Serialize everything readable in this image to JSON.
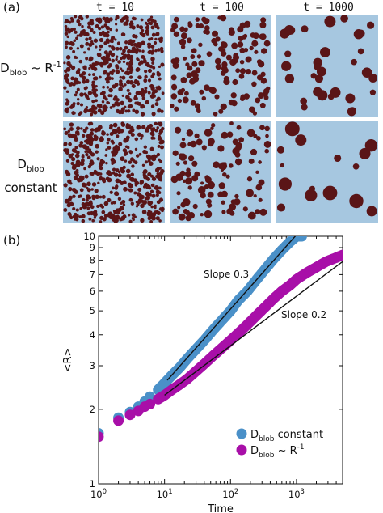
{
  "figure": {
    "panel_a_label": "(a)",
    "panel_b_label": "(b)",
    "column_titles": [
      "t = 10",
      "t = 100",
      "t = 1000"
    ],
    "row_labels": [
      {
        "main": "D",
        "sub": "blob",
        "rest": " ~ R",
        "sup": "-1",
        "line2": ""
      },
      {
        "main": "D",
        "sub": "blob",
        "rest": "",
        "sup": "",
        "line2": "constant"
      }
    ],
    "colors": {
      "background": "#a6c7e0",
      "blob": "#5a1517"
    }
  },
  "chart_data": {
    "type": "scatter",
    "xlabel": "Time",
    "ylabel": "<R>",
    "xscale": "log",
    "yscale": "log",
    "xlim": [
      1,
      5000
    ],
    "ylim": [
      1,
      10
    ],
    "x_tick_labels": [
      "10^0",
      "10^1",
      "10^2",
      "10^3"
    ],
    "y_tick_labels": [
      "1",
      "2",
      "3",
      "4",
      "5",
      "6",
      "7",
      "8",
      "9",
      "10"
    ],
    "grid": false,
    "legend_position": "bottom-right",
    "series": [
      {
        "name": "D_blob constant",
        "legend": {
          "main": "D",
          "sub": "blob",
          "rest": " constant",
          "sup": ""
        },
        "color": "#4a90c8",
        "x": [
          1,
          2,
          3,
          4,
          5,
          6,
          8,
          10,
          13,
          17,
          22,
          30,
          40,
          55,
          75,
          100,
          130,
          180,
          250,
          340,
          450,
          600,
          800,
          1000,
          1200
        ],
        "y": [
          1.6,
          1.85,
          1.95,
          2.05,
          2.15,
          2.25,
          2.4,
          2.55,
          2.75,
          2.95,
          3.2,
          3.5,
          3.8,
          4.2,
          4.6,
          5.0,
          5.5,
          6.0,
          6.7,
          7.4,
          8.1,
          8.8,
          9.5,
          10.0,
          10.0
        ],
        "fit_label": "Slope 0.3",
        "fit_slope": 0.3,
        "fit_x": [
          11,
          1000
        ]
      },
      {
        "name": "D_blob ~ R^-1",
        "legend": {
          "main": "D",
          "sub": "blob",
          "rest": " ~ R",
          "sup": "-1"
        },
        "color": "#a80fa8",
        "x": [
          1,
          2,
          3,
          4,
          5,
          6,
          8,
          10,
          13,
          17,
          22,
          30,
          40,
          55,
          75,
          100,
          130,
          180,
          250,
          340,
          450,
          600,
          800,
          1000,
          1400,
          2000,
          2800,
          4000,
          5000
        ],
        "y": [
          1.55,
          1.8,
          1.9,
          1.97,
          2.05,
          2.1,
          2.2,
          2.28,
          2.4,
          2.52,
          2.65,
          2.85,
          3.05,
          3.3,
          3.55,
          3.8,
          4.05,
          4.4,
          4.8,
          5.2,
          5.6,
          6.0,
          6.35,
          6.7,
          7.1,
          7.5,
          7.9,
          8.2,
          8.4
        ],
        "fit_label": "Slope 0.2",
        "fit_slope": 0.2,
        "fit_x": [
          10,
          5000
        ]
      }
    ]
  }
}
